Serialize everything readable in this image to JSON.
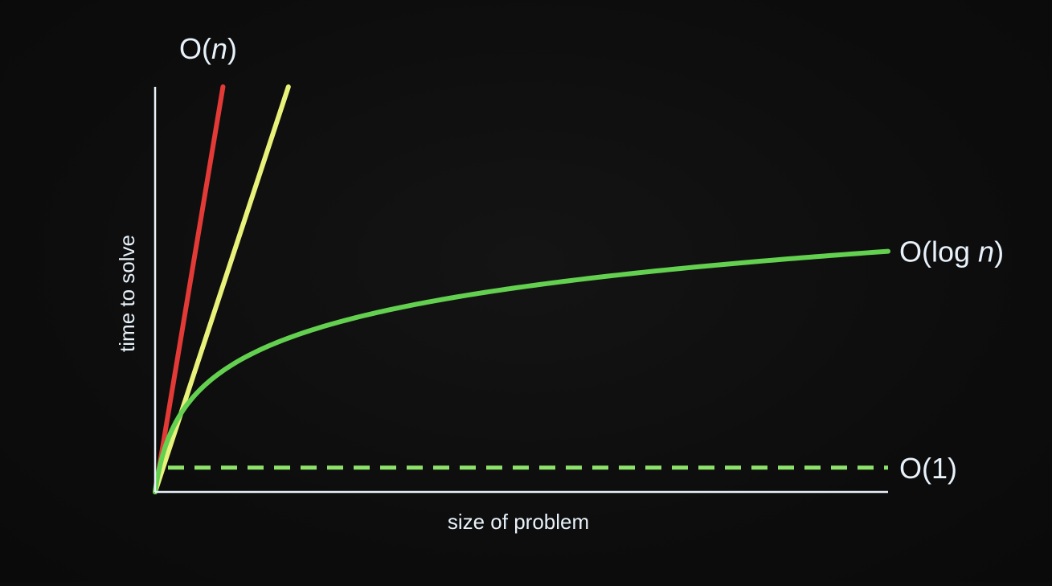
{
  "chart_data": {
    "type": "line",
    "title": "",
    "xlabel": "size of problem",
    "ylabel": "time to solve",
    "grid": false,
    "legend": "none",
    "colors": {
      "background": "#0c0c0c",
      "axis": "#e8f0f8",
      "text": "#e8f2fb",
      "red": "#e23a36",
      "yellow": "#e8f27a",
      "green": "#63d050",
      "dashed": "#8ee36a"
    },
    "series": [
      {
        "label_prefix": "",
        "label_italic": "",
        "label_suffix": "",
        "style": "solid",
        "color_key": "red",
        "curve": "linear",
        "slope": 10.8
      },
      {
        "label_prefix": "O(",
        "label_italic": "n",
        "label_suffix": ")",
        "style": "solid",
        "color_key": "yellow",
        "curve": "linear",
        "slope": 5.5
      },
      {
        "label_prefix": "O(log ",
        "label_italic": "n",
        "label_suffix": ")",
        "style": "solid",
        "color_key": "green",
        "curve": "log",
        "scale": 0.297
      },
      {
        "label_prefix": "O(1)",
        "label_italic": "",
        "label_suffix": "",
        "style": "dashed",
        "color_key": "dashed",
        "curve": "constant",
        "value": 0.06
      }
    ]
  }
}
